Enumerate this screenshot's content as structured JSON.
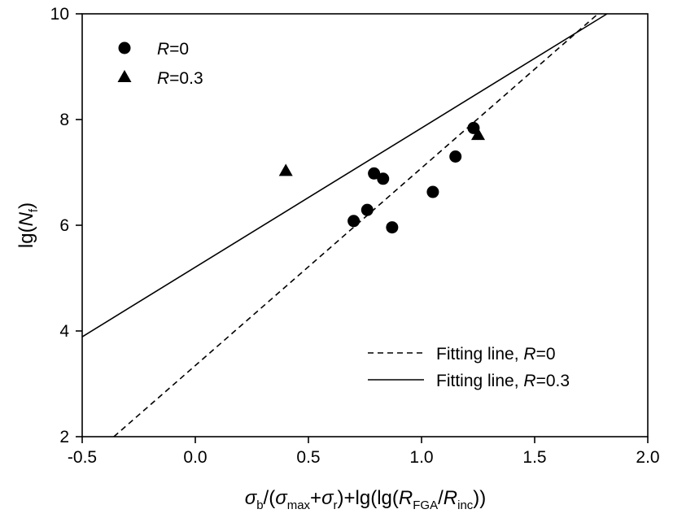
{
  "chart_data": {
    "type": "scatter",
    "xlim": [
      -0.5,
      2.0
    ],
    "ylim": [
      2,
      10
    ],
    "x_ticks": [
      "-0.5",
      "0.0",
      "0.5",
      "1.0",
      "1.5",
      "2.0"
    ],
    "y_ticks": [
      "2",
      "4",
      "6",
      "8",
      "10"
    ],
    "xlabel": {
      "sigma": "σ",
      "b": "b",
      "s1": "/(",
      "max": "max",
      "plus": "+",
      "r": "r",
      "s2": ")+lg(lg(",
      "R": "R",
      "fga": "FGA",
      "slash": "/",
      "inc": "inc",
      "s3": "))"
    },
    "ylabel": {
      "prefix": "lg(",
      "N": "N",
      "sub": "f",
      "suffix": ")"
    },
    "series": [
      {
        "name": "R=0",
        "name_parts": {
          "var": "R",
          "rest": "=0"
        },
        "marker": "circle",
        "color": "#000000",
        "points": [
          {
            "x": 0.7,
            "y": 6.08
          },
          {
            "x": 0.76,
            "y": 6.29
          },
          {
            "x": 0.79,
            "y": 6.98
          },
          {
            "x": 0.83,
            "y": 6.88
          },
          {
            "x": 0.87,
            "y": 5.96
          },
          {
            "x": 1.05,
            "y": 6.63
          },
          {
            "x": 1.15,
            "y": 7.3
          },
          {
            "x": 1.23,
            "y": 7.84
          }
        ]
      },
      {
        "name": "R=0.3",
        "name_parts": {
          "var": "R",
          "rest": "=0.3"
        },
        "marker": "triangle",
        "color": "#000000",
        "points": [
          {
            "x": 0.4,
            "y": 7.01
          },
          {
            "x": 1.25,
            "y": 7.69
          }
        ]
      }
    ],
    "fit_lines": [
      {
        "name": "Fitting line, R=0",
        "name_parts": {
          "prefix": "Fitting line, ",
          "var": "R",
          "rest": "=0"
        },
        "style": "dashed",
        "from": {
          "x": -0.36,
          "y": 2.0
        },
        "to": {
          "x": 1.78,
          "y": 10.0
        }
      },
      {
        "name": "Fitting line, R=0.3",
        "name_parts": {
          "prefix": "Fitting line, ",
          "var": "R",
          "rest": "=0.3"
        },
        "style": "solid",
        "from": {
          "x": -0.5,
          "y": 3.89
        },
        "to": {
          "x": 1.82,
          "y": 10.0
        }
      }
    ],
    "legend_markers_position": "top-left",
    "legend_lines_position": "bottom-right",
    "grid": false
  }
}
